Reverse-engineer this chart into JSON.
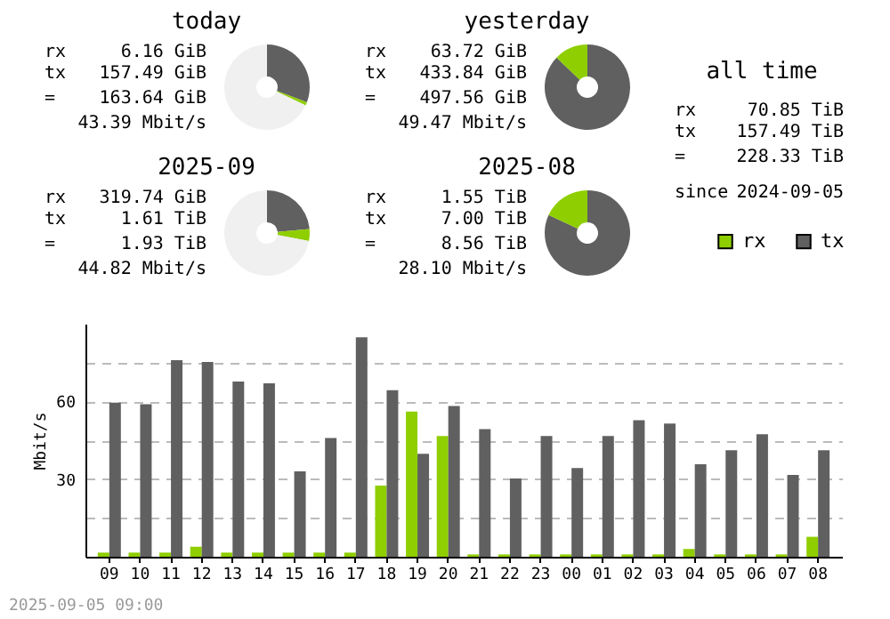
{
  "chart_data": [
    {
      "type": "donut",
      "title": "today",
      "categories": [
        null,
        null,
        null
      ],
      "values": [
        30.8,
        1.2,
        68
      ],
      "colors": [
        "#606060",
        "#8fce00",
        "#f0f0f0"
      ],
      "annotations": [
        "rx 6.16 GiB",
        "tx 157.49 GiB",
        "= 163.64 GiB",
        "43.39 Mbit/s"
      ]
    },
    {
      "type": "donut",
      "title": "yesterday",
      "categories": [
        null,
        null
      ],
      "values": [
        87.2,
        12.8
      ],
      "colors": [
        "#606060",
        "#8fce00"
      ],
      "annotations": [
        "rx 63.72 GiB",
        "tx 433.84 GiB",
        "= 497.56 GiB",
        "49.47 Mbit/s"
      ]
    },
    {
      "type": "donut",
      "title": "2025-09",
      "categories": [
        null,
        null,
        null
      ],
      "values": [
        23.5,
        4.5,
        72
      ],
      "colors": [
        "#606060",
        "#8fce00",
        "#f0f0f0"
      ],
      "annotations": [
        "rx 319.74 GiB",
        "tx 1.61 TiB",
        "= 1.93 TiB",
        "44.82 Mbit/s"
      ]
    },
    {
      "type": "donut",
      "title": "2025-08",
      "categories": [
        null,
        null
      ],
      "values": [
        81.9,
        18.1
      ],
      "colors": [
        "#606060",
        "#8fce00"
      ],
      "annotations": [
        "rx 1.55 TiB",
        "tx 7.00 TiB",
        "= 8.56 TiB",
        "28.10 Mbit/s"
      ]
    },
    {
      "type": "other",
      "title": "all time",
      "annotations": [
        "rx 70.85 TiB",
        "tx 157.49 TiB",
        "= 228.33 TiB",
        "since 2024-09-05"
      ]
    },
    {
      "type": "bar",
      "ylabel": "Mbit/s",
      "categories": [
        "09",
        "10",
        "11",
        "12",
        "13",
        "14",
        "15",
        "16",
        "17",
        "18",
        "19",
        "20",
        "21",
        "22",
        "23",
        "00",
        "01",
        "02",
        "03",
        "04",
        "05",
        "06",
        "07",
        "08"
      ],
      "series": [
        {
          "name": "rx",
          "color": "#8fce00",
          "values": [
            1.6,
            1.6,
            1.6,
            3.9,
            1.6,
            1.6,
            1.6,
            1.6,
            1.6,
            27.5,
            56.1,
            46.6,
            0.9,
            0.9,
            0.9,
            0.9,
            0.9,
            0.9,
            0.9,
            3,
            0.9,
            0.9,
            0.9,
            7.7
          ]
        },
        {
          "name": "tx",
          "color": "#606060",
          "values": [
            59.5,
            58.9,
            75.9,
            75.2,
            67.7,
            67,
            33,
            45.9,
            84.8,
            64.3,
            39.8,
            58.2,
            49.3,
            30.2,
            46.6,
            34.3,
            46.6,
            52.7,
            51.4,
            35.7,
            41.1,
            47.3,
            31.6,
            41.1
          ]
        }
      ],
      "ylim": [
        0,
        90
      ],
      "yticks": [
        {
          "value": 15,
          "label": null
        },
        30,
        {
          "value": 45,
          "label": null
        },
        60,
        {
          "value": 75,
          "label": null
        }
      ],
      "grid": "y",
      "legend": "top right",
      "annotations": [
        "2025-09-05 09:00"
      ]
    }
  ]
}
